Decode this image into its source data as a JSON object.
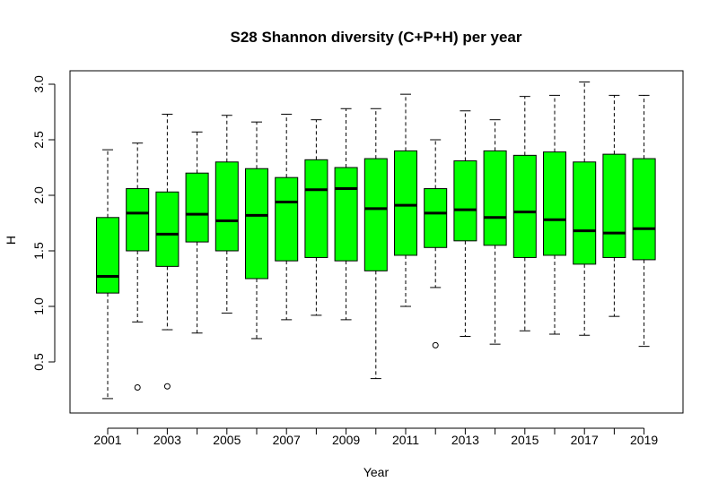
{
  "chart_data": {
    "type": "boxplot",
    "title": "S28 Shannon diversity (C+P+H) per year",
    "xlabel": "Year",
    "ylabel": "H",
    "ylim": [
      0.1,
      3.1
    ],
    "yticks": [
      "0.5",
      "1.0",
      "1.5",
      "2.0",
      "2.5",
      "3.0"
    ],
    "xtick_labels": [
      "2001",
      "2003",
      "2005",
      "2007",
      "2009",
      "2011",
      "2013",
      "2015",
      "2017",
      "2019"
    ],
    "box_color": "#00ff00",
    "categories": [
      "2001",
      "2002",
      "2003",
      "2004",
      "2005",
      "2006",
      "2007",
      "2008",
      "2009",
      "2010",
      "2011",
      "2012",
      "2013",
      "2014",
      "2015",
      "2016",
      "2017",
      "2018",
      "2019"
    ],
    "boxes": [
      {
        "year": "2001",
        "min": 0.17,
        "q1": 1.12,
        "median": 1.27,
        "q3": 1.8,
        "max": 2.41,
        "outliers": []
      },
      {
        "year": "2002",
        "min": 0.86,
        "q1": 1.5,
        "median": 1.84,
        "q3": 2.06,
        "max": 2.47,
        "outliers": [
          0.27
        ]
      },
      {
        "year": "2003",
        "min": 0.79,
        "q1": 1.36,
        "median": 1.65,
        "q3": 2.03,
        "max": 2.73,
        "outliers": [
          0.28
        ]
      },
      {
        "year": "2004",
        "min": 0.76,
        "q1": 1.58,
        "median": 1.83,
        "q3": 2.2,
        "max": 2.57,
        "outliers": []
      },
      {
        "year": "2005",
        "min": 0.94,
        "q1": 1.5,
        "median": 1.77,
        "q3": 2.3,
        "max": 2.72,
        "outliers": []
      },
      {
        "year": "2006",
        "min": 0.71,
        "q1": 1.25,
        "median": 1.82,
        "q3": 2.24,
        "max": 2.66,
        "outliers": []
      },
      {
        "year": "2007",
        "min": 0.88,
        "q1": 1.41,
        "median": 1.94,
        "q3": 2.16,
        "max": 2.73,
        "outliers": []
      },
      {
        "year": "2008",
        "min": 0.92,
        "q1": 1.44,
        "median": 2.05,
        "q3": 2.32,
        "max": 2.68,
        "outliers": []
      },
      {
        "year": "2009",
        "min": 0.88,
        "q1": 1.41,
        "median": 2.06,
        "q3": 2.25,
        "max": 2.78,
        "outliers": []
      },
      {
        "year": "2010",
        "min": 0.35,
        "q1": 1.32,
        "median": 1.88,
        "q3": 2.33,
        "max": 2.78,
        "outliers": []
      },
      {
        "year": "2011",
        "min": 1.0,
        "q1": 1.46,
        "median": 1.91,
        "q3": 2.4,
        "max": 2.91,
        "outliers": []
      },
      {
        "year": "2012",
        "min": 1.17,
        "q1": 1.53,
        "median": 1.84,
        "q3": 2.06,
        "max": 2.5,
        "outliers": [
          0.65
        ]
      },
      {
        "year": "2013",
        "min": 0.73,
        "q1": 1.59,
        "median": 1.87,
        "q3": 2.31,
        "max": 2.76,
        "outliers": []
      },
      {
        "year": "2014",
        "min": 0.66,
        "q1": 1.55,
        "median": 1.8,
        "q3": 2.4,
        "max": 2.68,
        "outliers": []
      },
      {
        "year": "2015",
        "min": 0.78,
        "q1": 1.44,
        "median": 1.85,
        "q3": 2.36,
        "max": 2.89,
        "outliers": []
      },
      {
        "year": "2016",
        "min": 0.75,
        "q1": 1.46,
        "median": 1.78,
        "q3": 2.39,
        "max": 2.9,
        "outliers": []
      },
      {
        "year": "2017",
        "min": 0.74,
        "q1": 1.38,
        "median": 1.68,
        "q3": 2.3,
        "max": 3.02,
        "outliers": []
      },
      {
        "year": "2018",
        "min": 0.91,
        "q1": 1.44,
        "median": 1.66,
        "q3": 2.37,
        "max": 2.9,
        "outliers": []
      },
      {
        "year": "2019",
        "min": 0.64,
        "q1": 1.42,
        "median": 1.7,
        "q3": 2.33,
        "max": 2.9,
        "outliers": []
      }
    ]
  }
}
